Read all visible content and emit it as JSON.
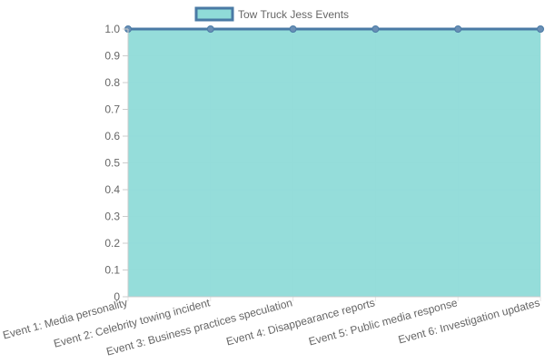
{
  "chart_data": {
    "type": "area",
    "categories": [
      "Event 1: Media personality",
      "Event 2: Celebrity towing incident",
      "Event 3: Business practices speculation",
      "Event 4: Disappearance reports",
      "Event 5: Public media response",
      "Event 6: Investigation updates"
    ],
    "series": [
      {
        "name": "Tow Truck Jess Events",
        "values": [
          1,
          1,
          1,
          1,
          1,
          1
        ],
        "fill_color": "#8fdbd8",
        "line_color": "#4a7aa5",
        "point_color": "#6a8fb5"
      }
    ],
    "ylim": [
      0,
      1.0
    ],
    "y_ticks": [
      "0",
      "0.1",
      "0.2",
      "0.3",
      "0.4",
      "0.5",
      "0.6",
      "0.7",
      "0.8",
      "0.9",
      "1.0"
    ],
    "grid": true,
    "legend_position": "top-center",
    "colors": {
      "grid": "#e6e6e6",
      "axis": "#cccccc",
      "text": "#666666"
    }
  }
}
